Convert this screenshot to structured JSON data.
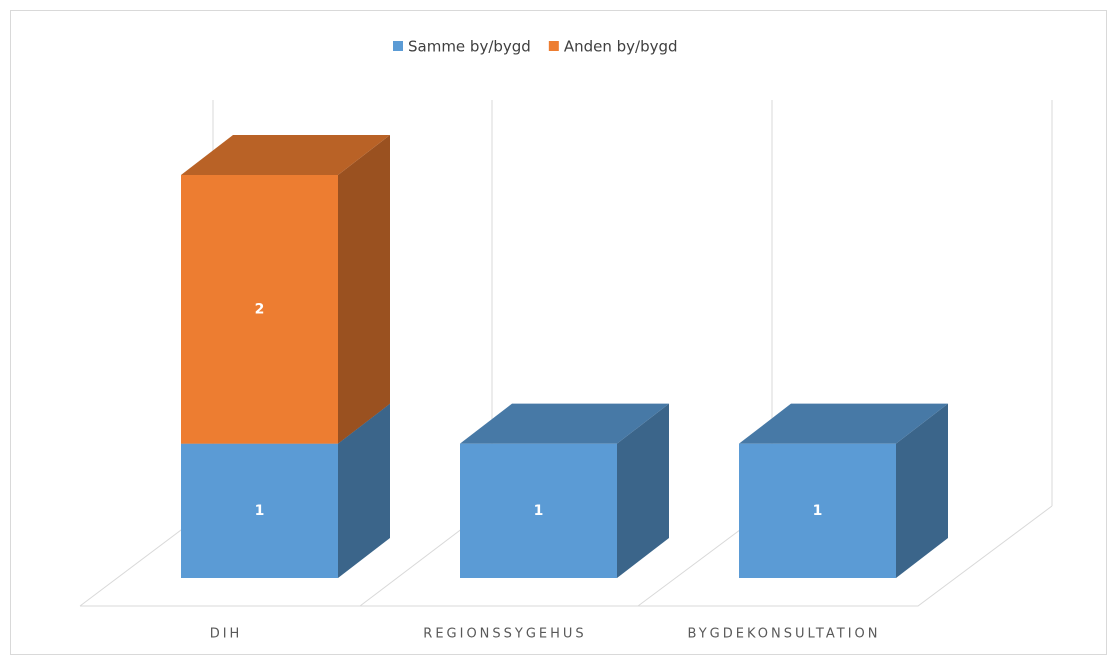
{
  "chart_data": {
    "type": "bar3d_stacked",
    "categories": [
      "DIH",
      "REGIONSSYGEHUS",
      "BYGDEKONSULTATION"
    ],
    "series": [
      {
        "name": "Samme by/bygd",
        "color": "#5b9bd5",
        "values": [
          1,
          1,
          1
        ]
      },
      {
        "name": "Anden by/bygd",
        "color": "#ed7d31",
        "values": [
          2,
          null,
          null
        ]
      }
    ],
    "legend": "top"
  }
}
